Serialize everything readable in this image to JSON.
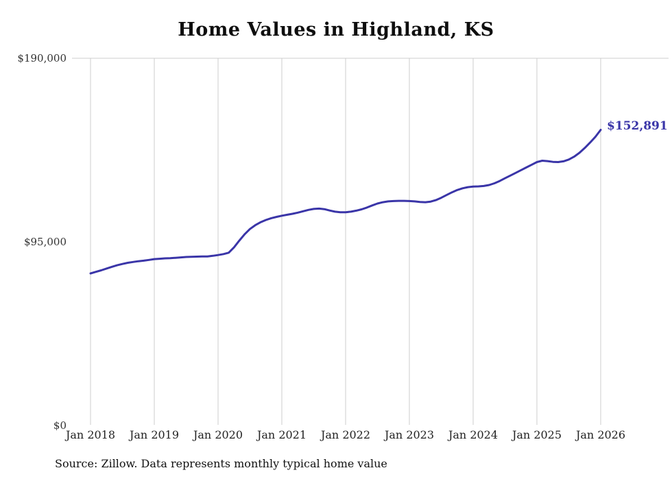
{
  "colors": {
    "line": "#3a35a8",
    "grid": "#cccccc",
    "text": "#222222"
  },
  "chart_data": {
    "type": "line",
    "title": "Home Values in Highland, KS",
    "source_note": "Source: Zillow. Data represents monthly typical home value",
    "end_label": "$152,891",
    "latest_value": 152891,
    "ylim": [
      0,
      190000
    ],
    "y_tick_labels": [
      "$190,000",
      "$95,000",
      "$0"
    ],
    "y_tick_values": [
      190000,
      95000,
      0
    ],
    "x_tick_labels": [
      "Jan 2018",
      "Jan 2019",
      "Jan 2020",
      "Jan 2021",
      "Jan 2022",
      "Jan 2023",
      "Jan 2024",
      "Jan 2025",
      "Jan 2026"
    ],
    "x_start": "2018-01",
    "x_interval": "monthly",
    "grid": "vertical-yearly",
    "legend": "none",
    "values": [
      78500,
      79300,
      80100,
      81000,
      81900,
      82700,
      83400,
      84000,
      84400,
      84800,
      85100,
      85500,
      85900,
      86100,
      86300,
      86400,
      86600,
      86800,
      87000,
      87100,
      87200,
      87300,
      87300,
      87600,
      88000,
      88500,
      89200,
      92000,
      95500,
      98800,
      101500,
      103500,
      105000,
      106200,
      107100,
      107800,
      108400,
      108900,
      109400,
      110000,
      110700,
      111400,
      111900,
      112100,
      111800,
      111100,
      110500,
      110200,
      110200,
      110500,
      111000,
      111700,
      112600,
      113700,
      114700,
      115400,
      115800,
      116000,
      116100,
      116100,
      116000,
      115800,
      115500,
      115400,
      115700,
      116500,
      117700,
      119100,
      120500,
      121700,
      122600,
      123200,
      123500,
      123600,
      123800,
      124300,
      125200,
      126400,
      127800,
      129200,
      130600,
      132000,
      133400,
      134800,
      136200,
      136900,
      136700,
      136300,
      136200,
      136600,
      137500,
      139000,
      141000,
      143500,
      146300,
      149300,
      152891
    ]
  }
}
